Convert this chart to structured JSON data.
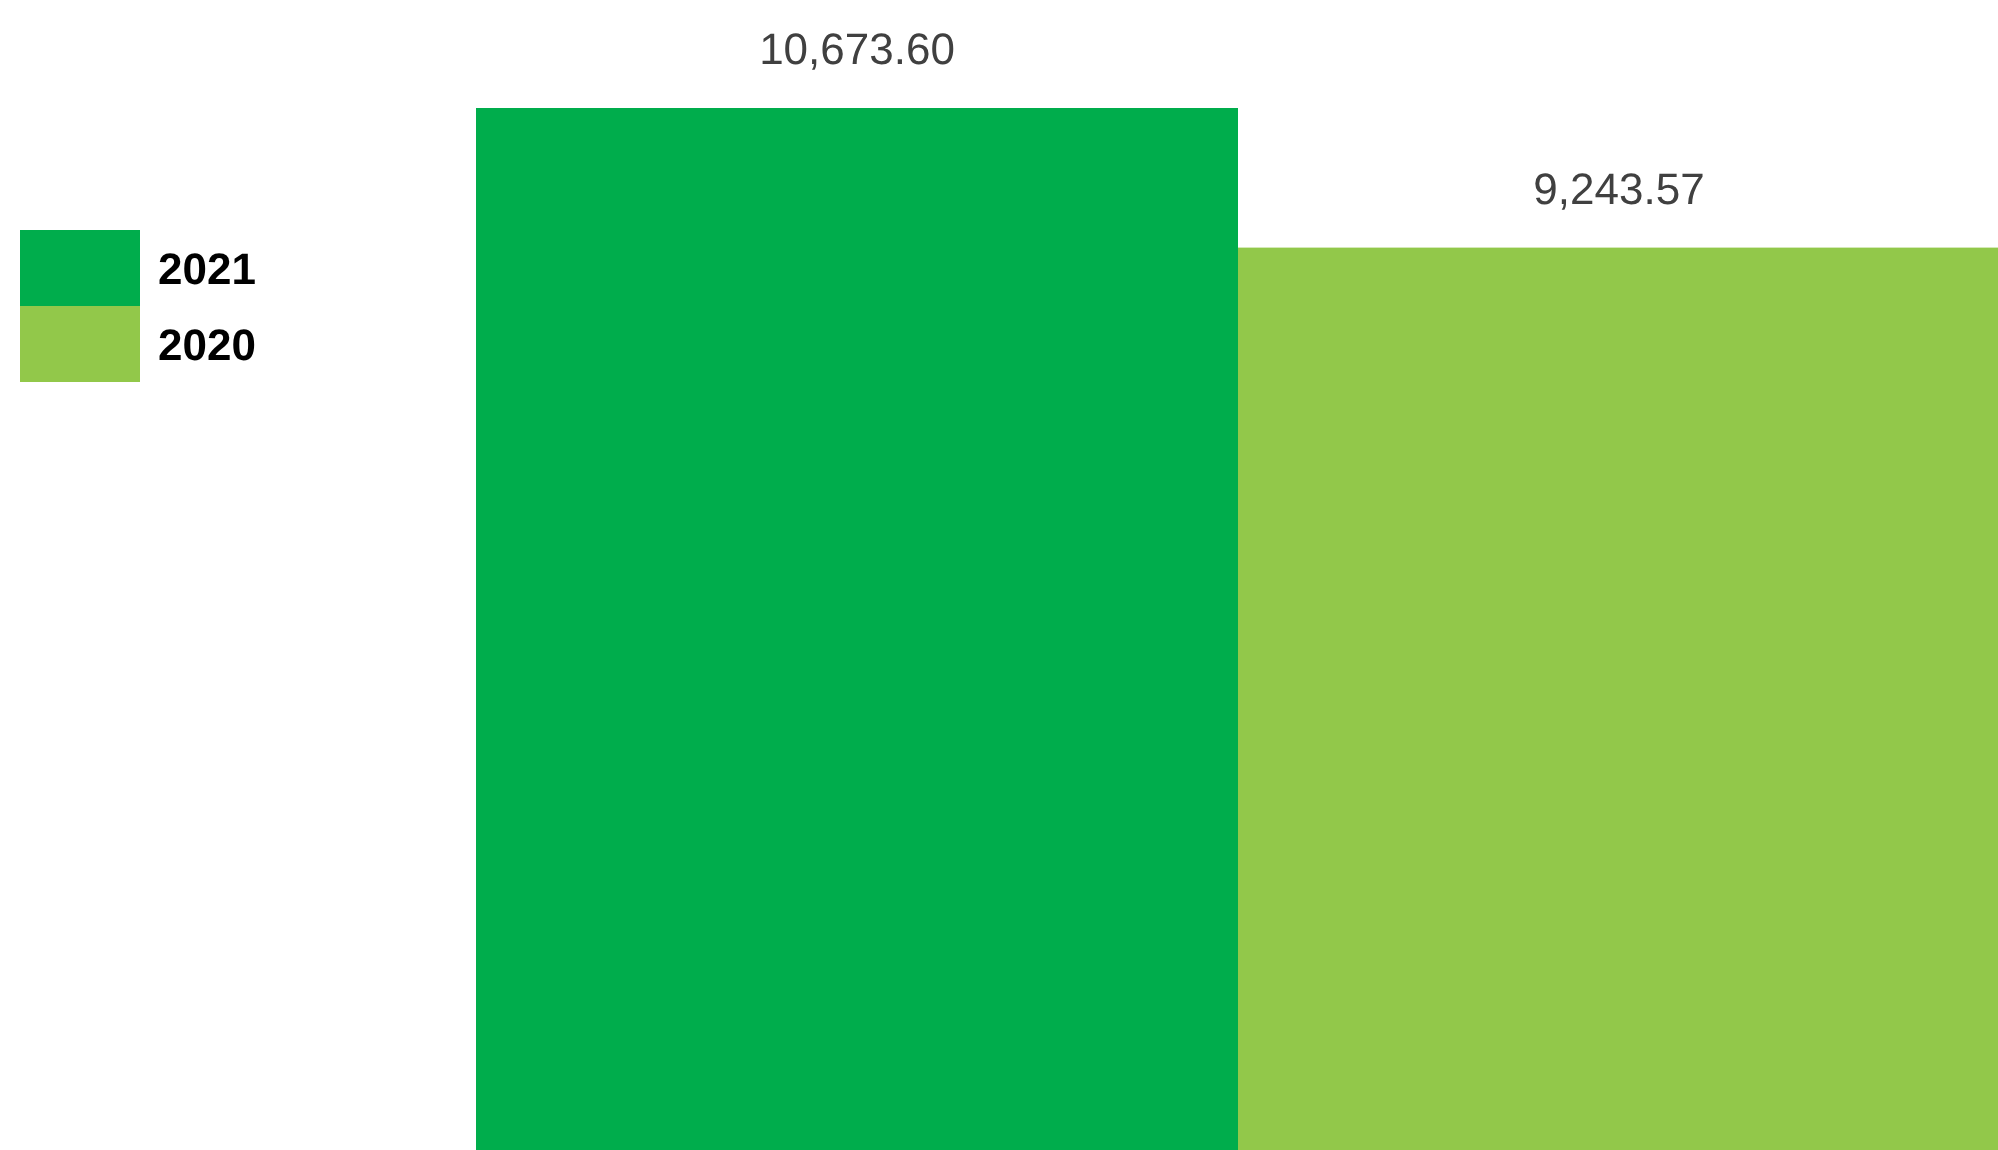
{
  "chart_data": {
    "type": "bar",
    "categories": [
      null
    ],
    "series": [
      {
        "name": "2021",
        "color": "#00ad4c",
        "values": [
          10673.6
        ],
        "value_labels": [
          "10,673.60"
        ]
      },
      {
        "name": "2020",
        "color": "#92c84a",
        "values": [
          9243.57
        ],
        "value_labels": [
          "9,243.57"
        ]
      }
    ],
    "legend": "left"
  }
}
